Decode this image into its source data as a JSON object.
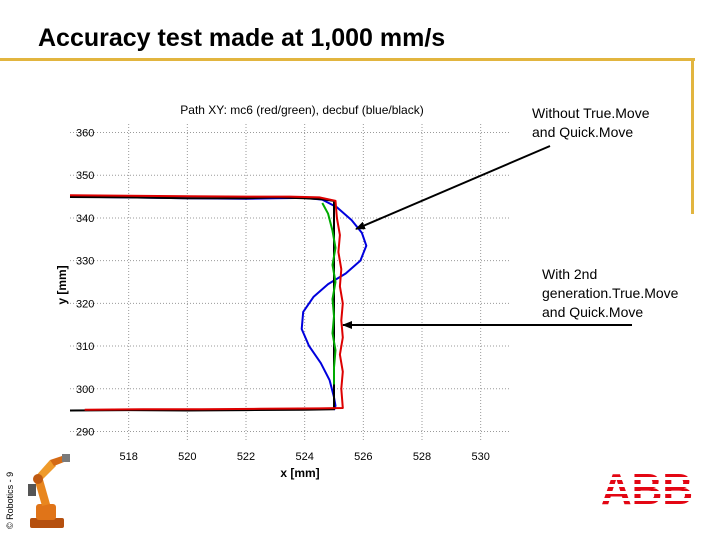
{
  "slide": {
    "title": "Accuracy test made at 1,000 mm/s",
    "side_note": "© Robotics - 9",
    "accent_color": "#e2b53f"
  },
  "annotations": [
    {
      "text_line1": "Without True.Move",
      "text_line2": "and Quick.Move"
    },
    {
      "text_line1": "With 2nd",
      "text_line2": "generation.True.Move",
      "text_line3": "and Quick.Move"
    }
  ],
  "logos": {
    "brand": "ABB",
    "brand_color": "#e30613",
    "robot_icon": "industrial-robot-icon"
  },
  "chart_data": {
    "type": "line",
    "title": "Path XY: mc6 (red/green), decbuf (blue/black)",
    "xlabel": "x [mm]",
    "ylabel": "y [mm]",
    "xlim": [
      516,
      531
    ],
    "ylim": [
      288,
      362
    ],
    "xticks": [
      518,
      520,
      522,
      524,
      526,
      528,
      530
    ],
    "yticks": [
      290,
      300,
      310,
      320,
      330,
      340,
      350,
      360
    ],
    "grid": true,
    "series": [
      {
        "color": "#0000dd",
        "x": [
          516,
          518,
          520,
          522,
          523,
          524,
          524.6,
          525.1,
          525.6,
          525.95,
          526.1,
          525.9,
          525.4,
          524.8,
          524.3,
          523.95,
          523.9,
          524.15,
          524.55,
          524.85,
          525.0,
          525.05,
          525.0
        ],
        "y": [
          345,
          344.8,
          344.6,
          344.5,
          344.6,
          344.7,
          344.3,
          342.5,
          339.5,
          336.5,
          333.5,
          330,
          327,
          324.5,
          321.5,
          318,
          314,
          310,
          306,
          302,
          298,
          296,
          295
        ]
      },
      {
        "color": "#000000",
        "x": [
          516,
          518,
          520,
          522,
          523,
          524,
          524.6,
          525.0,
          525.0,
          525.0,
          525.0,
          524.0,
          522.0,
          520.0,
          518.0,
          516.0
        ],
        "y": [
          344.9,
          344.8,
          344.6,
          344.6,
          344.8,
          344.6,
          344.4,
          344.0,
          330,
          310,
          295.2,
          295.1,
          295.0,
          294.9,
          295.0,
          294.9
        ]
      },
      {
        "color": "#dd0000",
        "x": [
          516,
          518,
          520,
          522,
          523.5,
          524.5,
          525.05,
          525.1,
          525.2,
          525.15,
          525.25,
          525.2,
          525.3,
          525.25,
          525.3,
          525.2,
          525.3,
          525.25,
          525.3,
          524.5,
          522.5,
          520.5,
          518.5,
          516.5
        ],
        "y": [
          345.3,
          345.2,
          345.1,
          345.0,
          345.0,
          344.8,
          344,
          340,
          336,
          332,
          328,
          324,
          320,
          316,
          312,
          308,
          304,
          300,
          295.5,
          295.4,
          295.3,
          295.2,
          295.2,
          295.1
        ]
      },
      {
        "color": "#00aa00",
        "x": [
          524.6,
          524.8,
          524.95,
          525.05,
          524.95,
          525.05,
          524.95,
          525.0,
          524.95,
          525.05,
          525.0,
          525.0
        ],
        "y": [
          343.5,
          341,
          337,
          333,
          329,
          325,
          321,
          317,
          313,
          309,
          305,
          301
        ]
      }
    ]
  }
}
